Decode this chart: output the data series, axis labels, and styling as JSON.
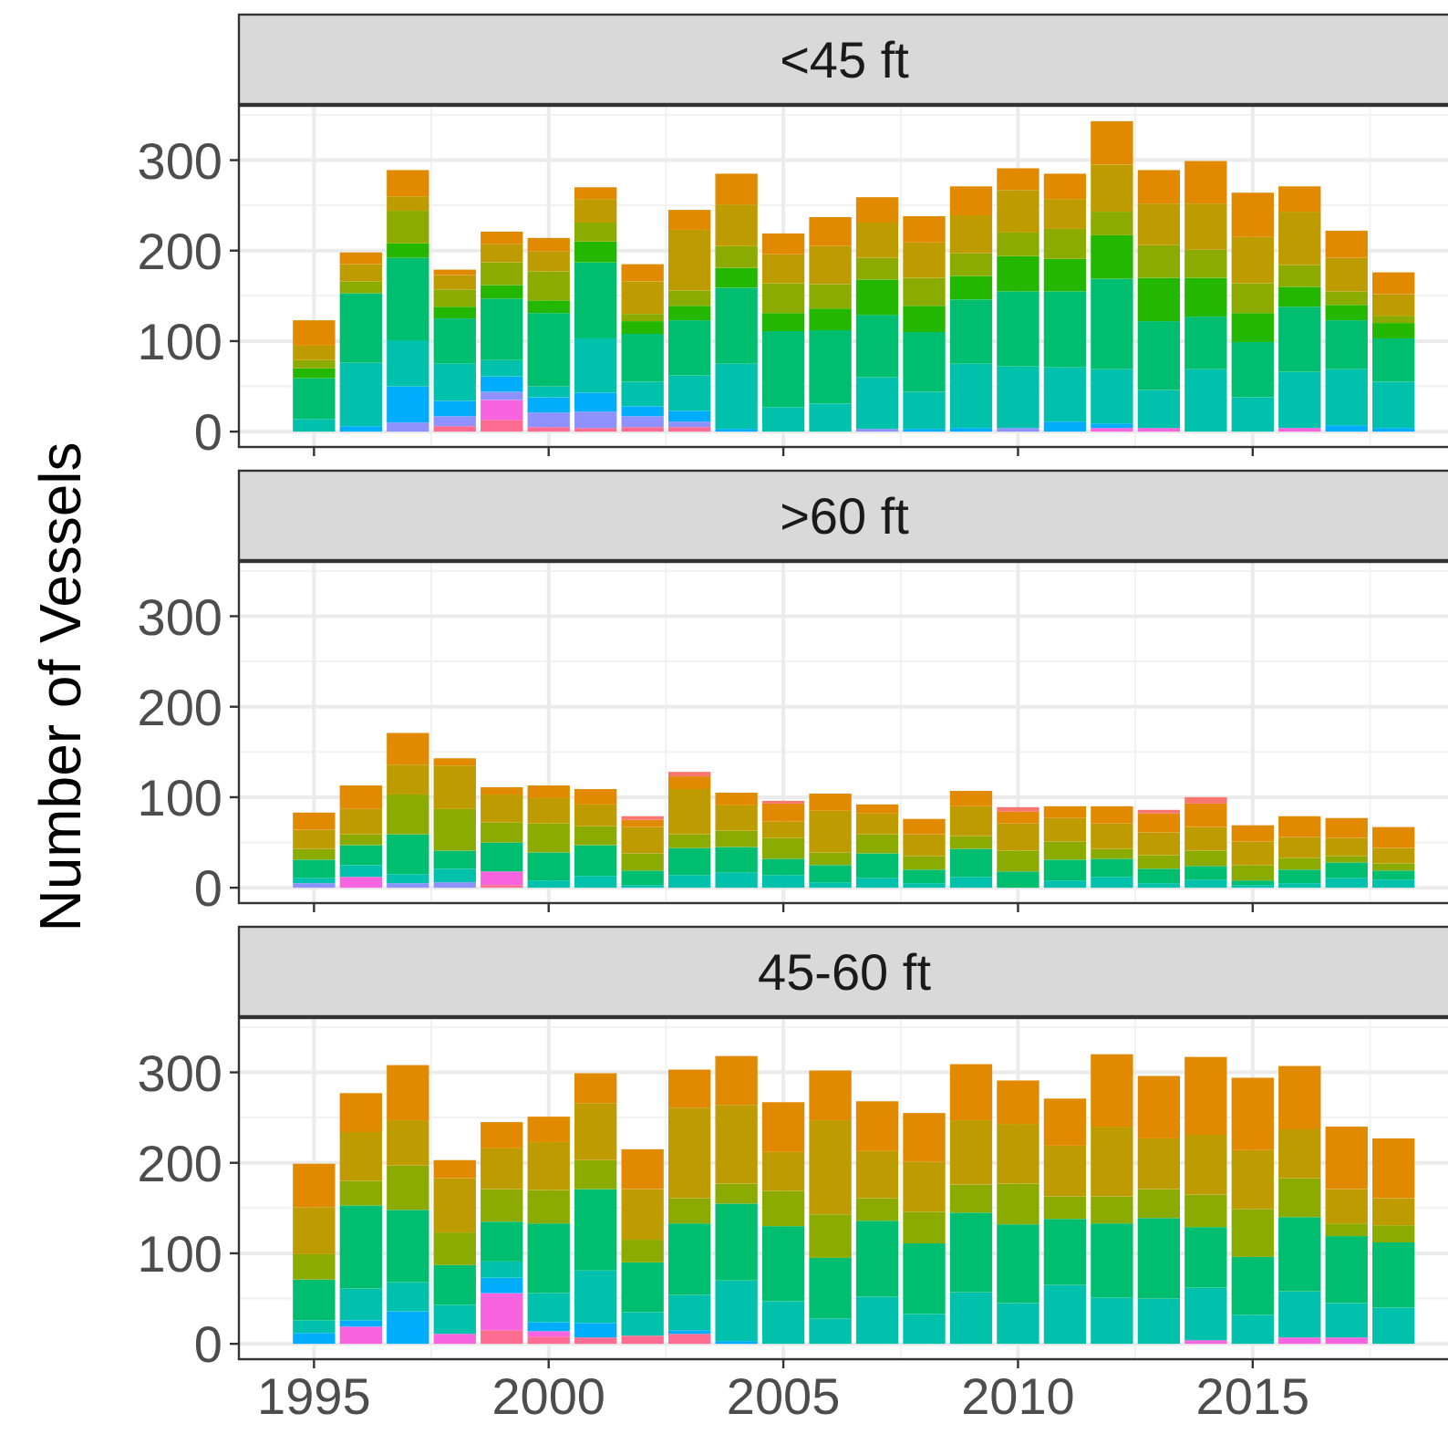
{
  "chart_data": [
    {
      "type": "bar",
      "title": "<45 ft",
      "stacked": true,
      "grid": true,
      "tick_labels": "y",
      "x": [
        1995,
        1996,
        1997,
        1998,
        1999,
        2000,
        2001,
        2002,
        2003,
        2004,
        2005,
        2006,
        2007,
        2008,
        2009,
        2010,
        2011,
        2012,
        2013,
        2014,
        2015,
        2016,
        2017,
        2018
      ],
      "xlim": [
        1993.4,
        2019.2
      ],
      "xticks": [
        1995,
        2000,
        2005,
        2010,
        2015
      ],
      "ylim": [
        -17,
        360
      ],
      "yticks": [
        0,
        100,
        200,
        300
      ],
      "series": [
        {
          "color": "#ff6c91",
          "values": [
            0,
            0,
            0,
            6,
            13,
            5,
            4,
            5,
            5,
            0,
            0,
            0,
            0,
            0,
            0,
            0,
            0,
            0,
            0,
            0,
            0,
            0,
            0,
            0
          ]
        },
        {
          "color": "#f863df",
          "values": [
            0,
            0,
            0,
            0,
            22,
            0,
            0,
            0,
            0,
            0,
            0,
            0,
            0,
            0,
            0,
            0,
            0,
            4,
            4,
            0,
            0,
            4,
            0,
            0
          ]
        },
        {
          "color": "#8f91ff",
          "values": [
            0,
            0,
            10,
            11,
            9,
            16,
            18,
            12,
            6,
            0,
            0,
            0,
            3,
            0,
            0,
            4,
            0,
            0,
            0,
            0,
            0,
            0,
            0,
            0
          ]
        },
        {
          "color": "#00acfc",
          "values": [
            0,
            6,
            40,
            17,
            17,
            17,
            21,
            11,
            12,
            3,
            0,
            0,
            0,
            3,
            4,
            0,
            11,
            5,
            0,
            0,
            0,
            0,
            7,
            4
          ]
        },
        {
          "color": "#00c1ab",
          "values": [
            14,
            70,
            51,
            41,
            18,
            12,
            60,
            27,
            39,
            72,
            27,
            31,
            57,
            41,
            71,
            68,
            60,
            60,
            42,
            69,
            38,
            62,
            62,
            51
          ]
        },
        {
          "color": "#00be70",
          "values": [
            45,
            77,
            91,
            50,
            68,
            81,
            84,
            53,
            61,
            84,
            84,
            81,
            69,
            66,
            71,
            83,
            84,
            100,
            76,
            58,
            61,
            72,
            54,
            48
          ]
        },
        {
          "color": "#24b700",
          "values": [
            11,
            0,
            16,
            13,
            15,
            14,
            23,
            14,
            16,
            22,
            20,
            24,
            39,
            29,
            26,
            39,
            36,
            48,
            48,
            43,
            32,
            22,
            17,
            17
          ]
        },
        {
          "color": "#8cab00",
          "values": [
            9,
            13,
            36,
            19,
            25,
            32,
            21,
            8,
            17,
            24,
            33,
            27,
            24,
            31,
            25,
            26,
            33,
            26,
            36,
            31,
            33,
            24,
            15,
            8
          ]
        },
        {
          "color": "#be9c00",
          "values": [
            16,
            19,
            16,
            16,
            20,
            22,
            26,
            36,
            67,
            46,
            32,
            42,
            39,
            39,
            42,
            47,
            33,
            52,
            46,
            51,
            51,
            59,
            37,
            24
          ]
        },
        {
          "color": "#e18a00",
          "values": [
            28,
            13,
            29,
            6,
            14,
            15,
            13,
            19,
            22,
            34,
            23,
            32,
            28,
            29,
            32,
            24,
            28,
            48,
            37,
            47,
            49,
            28,
            30,
            24
          ]
        }
      ]
    },
    {
      "type": "bar",
      "title": ">60 ft",
      "ylabel": "Number of Vessels",
      "stacked": true,
      "grid": true,
      "tick_labels": "y",
      "x": [
        1995,
        1996,
        1997,
        1998,
        1999,
        2000,
        2001,
        2002,
        2003,
        2004,
        2005,
        2006,
        2007,
        2008,
        2009,
        2010,
        2011,
        2012,
        2013,
        2014,
        2015,
        2016,
        2017,
        2018
      ],
      "xlim": [
        1993.4,
        2019.2
      ],
      "xticks": [
        1995,
        2000,
        2005,
        2010,
        2015
      ],
      "ylim": [
        -17,
        360
      ],
      "yticks": [
        0,
        100,
        200,
        300
      ],
      "series": [
        {
          "color": "#ff6c91",
          "values": [
            0,
            0,
            0,
            0,
            3,
            0,
            0,
            0,
            0,
            0,
            0,
            0,
            0,
            0,
            0,
            0,
            0,
            0,
            0,
            0,
            0,
            0,
            0,
            0
          ]
        },
        {
          "color": "#f863df",
          "values": [
            0,
            12,
            0,
            0,
            15,
            0,
            0,
            0,
            0,
            0,
            0,
            0,
            0,
            0,
            0,
            0,
            0,
            0,
            0,
            0,
            0,
            0,
            0,
            0
          ]
        },
        {
          "color": "#8f91ff",
          "values": [
            5,
            0,
            5,
            6,
            0,
            0,
            0,
            0,
            0,
            0,
            0,
            0,
            0,
            0,
            0,
            0,
            0,
            0,
            0,
            0,
            0,
            0,
            0,
            0
          ]
        },
        {
          "color": "#00c1ab",
          "values": [
            6,
            13,
            10,
            15,
            0,
            8,
            13,
            3,
            14,
            17,
            14,
            6,
            11,
            5,
            12,
            0,
            8,
            12,
            5,
            9,
            3,
            5,
            11,
            9
          ]
        },
        {
          "color": "#00be70",
          "values": [
            20,
            22,
            44,
            20,
            32,
            31,
            34,
            16,
            30,
            28,
            18,
            19,
            27,
            15,
            31,
            18,
            23,
            20,
            16,
            15,
            5,
            15,
            17,
            10
          ]
        },
        {
          "color": "#8cab00",
          "values": [
            12,
            12,
            44,
            46,
            22,
            32,
            21,
            19,
            15,
            18,
            23,
            14,
            21,
            15,
            14,
            23,
            20,
            11,
            15,
            17,
            17,
            13,
            7,
            8
          ]
        },
        {
          "color": "#be9c00",
          "values": [
            21,
            28,
            33,
            48,
            31,
            28,
            24,
            29,
            50,
            28,
            18,
            46,
            23,
            24,
            33,
            30,
            26,
            28,
            25,
            26,
            26,
            23,
            20,
            17
          ]
        },
        {
          "color": "#e18a00",
          "values": [
            19,
            26,
            35,
            8,
            8,
            14,
            17,
            8,
            14,
            14,
            20,
            19,
            10,
            17,
            17,
            13,
            13,
            19,
            21,
            26,
            18,
            23,
            22,
            23
          ]
        },
        {
          "color": "#f8766d",
          "values": [
            0,
            0,
            0,
            0,
            0,
            0,
            0,
            4,
            5,
            0,
            3,
            0,
            0,
            0,
            0,
            5,
            0,
            0,
            4,
            7,
            0,
            0,
            0,
            0
          ]
        }
      ]
    },
    {
      "type": "bar",
      "title": "45-60 ft",
      "stacked": true,
      "grid": true,
      "x": [
        1995,
        1996,
        1997,
        1998,
        1999,
        2000,
        2001,
        2002,
        2003,
        2004,
        2005,
        2006,
        2007,
        2008,
        2009,
        2010,
        2011,
        2012,
        2013,
        2014,
        2015,
        2016,
        2017,
        2018
      ],
      "xlim": [
        1993.4,
        2019.2
      ],
      "xticks": [
        1995,
        2000,
        2005,
        2010,
        2015
      ],
      "ylim": [
        -17,
        360
      ],
      "yticks": [
        0,
        100,
        200,
        300
      ],
      "series": [
        {
          "color": "#ff6c91",
          "values": [
            0,
            0,
            0,
            0,
            15,
            8,
            7,
            9,
            11,
            0,
            0,
            0,
            0,
            0,
            0,
            0,
            0,
            0,
            0,
            0,
            0,
            0,
            0,
            0
          ]
        },
        {
          "color": "#f863df",
          "values": [
            0,
            19,
            0,
            11,
            41,
            6,
            0,
            0,
            0,
            0,
            0,
            0,
            0,
            0,
            0,
            0,
            0,
            0,
            0,
            4,
            0,
            7,
            7,
            0
          ]
        },
        {
          "color": "#00acfc",
          "values": [
            12,
            7,
            36,
            0,
            17,
            10,
            16,
            0,
            4,
            3,
            0,
            0,
            0,
            0,
            0,
            0,
            0,
            0,
            0,
            0,
            0,
            0,
            0,
            0
          ]
        },
        {
          "color": "#00c1ab",
          "values": [
            14,
            35,
            32,
            32,
            18,
            32,
            58,
            26,
            39,
            67,
            47,
            28,
            52,
            33,
            57,
            45,
            65,
            51,
            50,
            58,
            32,
            51,
            38,
            40
          ]
        },
        {
          "color": "#00be70",
          "values": [
            45,
            92,
            80,
            44,
            44,
            77,
            90,
            55,
            79,
            85,
            83,
            67,
            84,
            78,
            88,
            87,
            73,
            82,
            89,
            67,
            64,
            82,
            74,
            72
          ]
        },
        {
          "color": "#8cab00",
          "values": [
            28,
            27,
            49,
            36,
            36,
            37,
            32,
            25,
            28,
            22,
            39,
            48,
            25,
            35,
            31,
            45,
            25,
            30,
            32,
            36,
            53,
            43,
            14,
            19
          ]
        },
        {
          "color": "#be9c00",
          "values": [
            52,
            54,
            50,
            60,
            45,
            53,
            63,
            56,
            100,
            87,
            43,
            104,
            52,
            55,
            71,
            66,
            56,
            77,
            56,
            66,
            65,
            54,
            38,
            30
          ]
        },
        {
          "color": "#e18a00",
          "values": [
            48,
            43,
            61,
            20,
            29,
            28,
            33,
            44,
            42,
            54,
            55,
            55,
            55,
            54,
            62,
            48,
            52,
            80,
            69,
            86,
            80,
            70,
            69,
            66
          ]
        }
      ]
    }
  ]
}
